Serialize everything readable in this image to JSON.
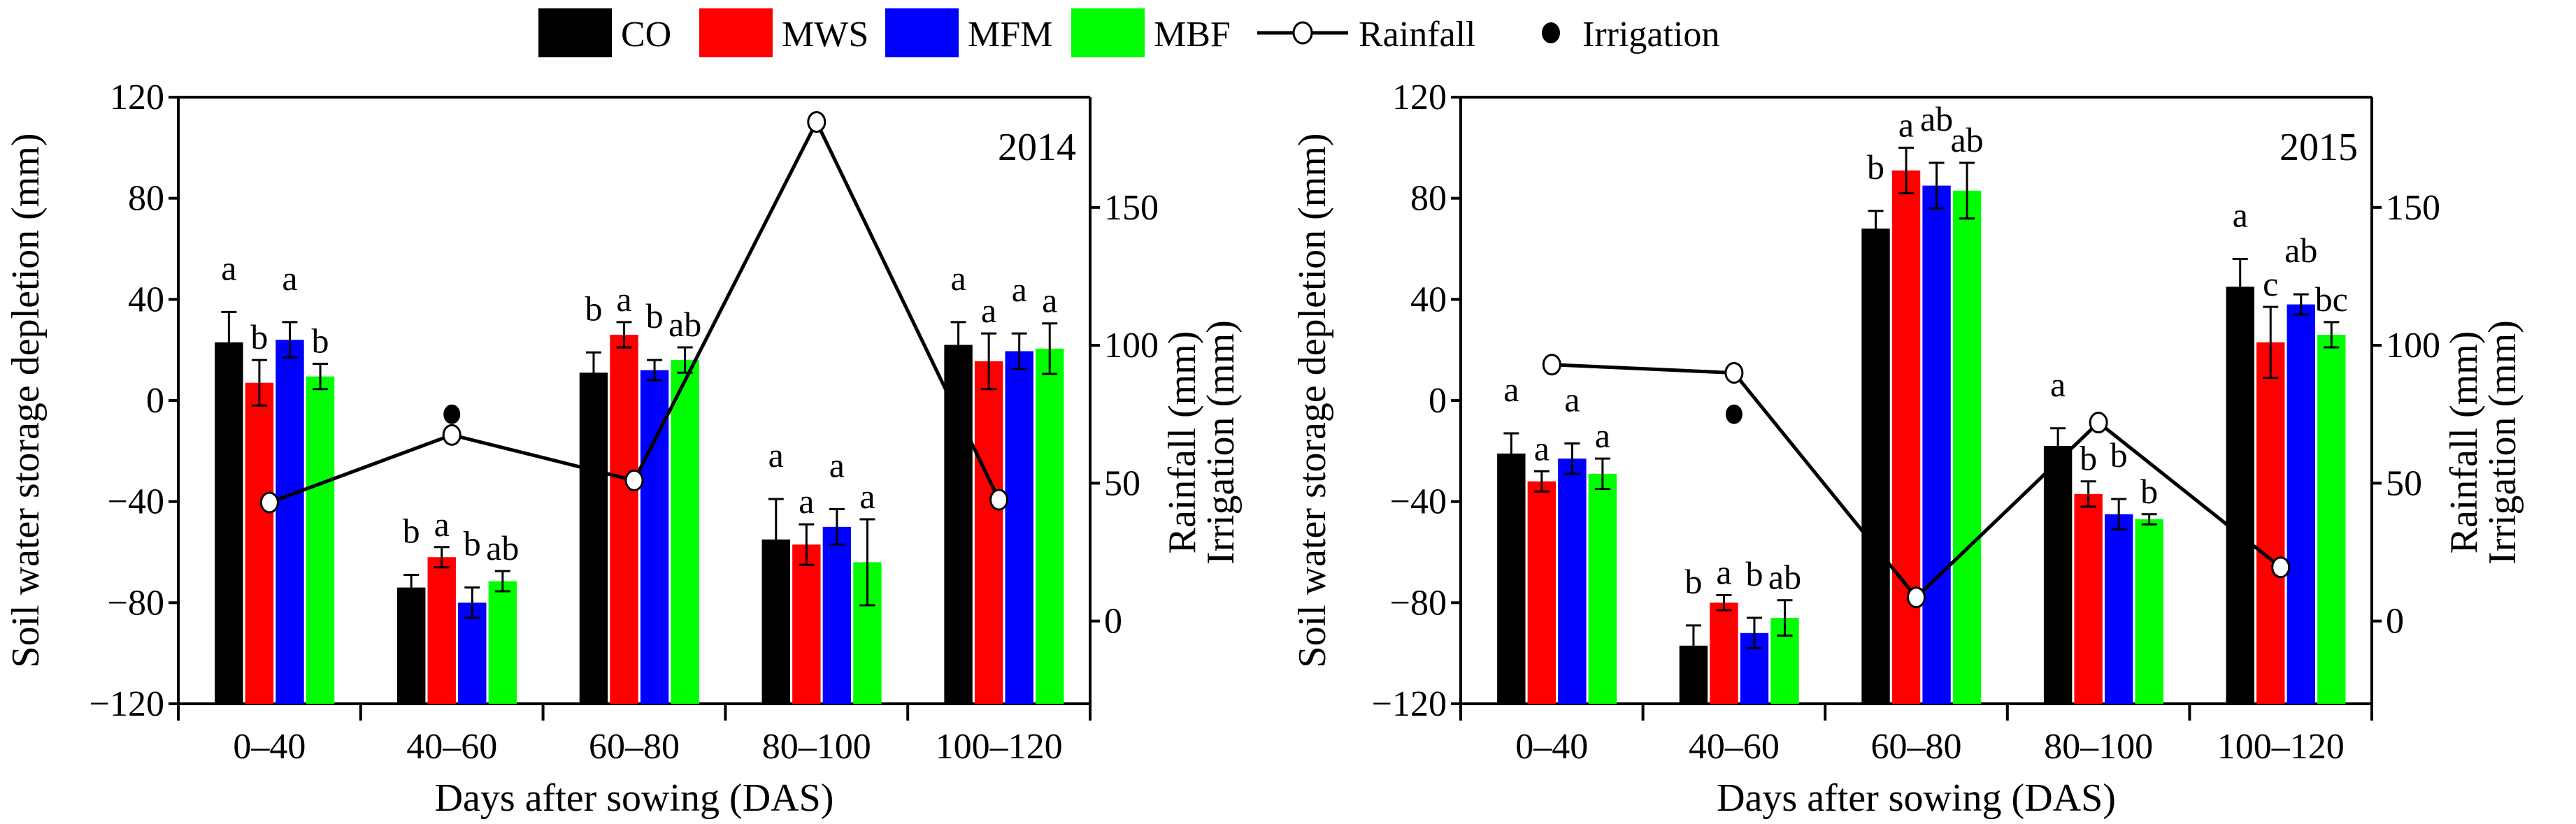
{
  "legend": [
    {
      "name": "CO",
      "color": "#000000",
      "type": "bar"
    },
    {
      "name": "MWS",
      "color": "#ff0000",
      "type": "bar"
    },
    {
      "name": "MFM",
      "color": "#0000ff",
      "type": "bar"
    },
    {
      "name": "MBF",
      "color": "#00ff00",
      "type": "bar"
    },
    {
      "name": "Rainfall",
      "type": "line-open-circle"
    },
    {
      "name": "Irrigation",
      "type": "filled-circle"
    }
  ],
  "chart_data": [
    {
      "type": "bar",
      "title": "2014",
      "xlabel": "Days after sowing (DAS)",
      "ylabel": "Soil water storage depletion (mm)",
      "y2label": [
        "Rainfall (mm)",
        "Irrigation (mm)"
      ],
      "ylim": [
        -120,
        120
      ],
      "yticks": [
        "120",
        "80",
        "40",
        "0",
        "−40",
        "−80",
        "−120"
      ],
      "y2lim": [
        -30,
        190
      ],
      "y2ticks": [
        "0",
        "50",
        "100",
        "150"
      ],
      "categories": [
        "0–40",
        "40–60",
        "60–80",
        "80–100",
        "100–120"
      ],
      "series": [
        {
          "name": "CO",
          "values": [
            23,
            -74,
            11,
            -55,
            22
          ],
          "errors": [
            12,
            5,
            8,
            16,
            9
          ],
          "letters": [
            "a",
            "b",
            "b",
            "a",
            "a"
          ]
        },
        {
          "name": "MWS",
          "values": [
            7,
            -62,
            26,
            -57,
            15.5
          ],
          "errors": [
            9,
            4,
            5,
            8,
            11
          ],
          "letters": [
            "b",
            "a",
            "a",
            "a",
            "a"
          ]
        },
        {
          "name": "MFM",
          "values": [
            24,
            -80,
            12,
            -50,
            19.5
          ],
          "errors": [
            7,
            6,
            4,
            7,
            7
          ],
          "letters": [
            "a",
            "b",
            "b",
            "a",
            "a"
          ]
        },
        {
          "name": "MBF",
          "values": [
            9.5,
            -71.5,
            16,
            -64,
            20.5
          ],
          "errors": [
            5,
            4,
            5,
            17,
            10
          ],
          "letters": [
            "b",
            "ab",
            "ab",
            "a",
            "a"
          ]
        }
      ],
      "rainfall": [
        43,
        67.5,
        51,
        181,
        44
      ],
      "irrigation": [
        null,
        75,
        null,
        null,
        null
      ]
    },
    {
      "type": "bar",
      "title": "2015",
      "xlabel": "Days after sowing (DAS)",
      "ylabel": "Soil water storage depletion (mm)",
      "y2label": [
        "Rainfall (mm)",
        "Irrigation (mm)"
      ],
      "ylim": [
        -120,
        120
      ],
      "yticks": [
        "120",
        "80",
        "40",
        "0",
        "−40",
        "−80",
        "−120"
      ],
      "y2lim": [
        -30,
        190
      ],
      "y2ticks": [
        "0",
        "50",
        "100",
        "150"
      ],
      "categories": [
        "0–40",
        "40–60",
        "60–80",
        "80–100",
        "100–120"
      ],
      "series": [
        {
          "name": "CO",
          "values": [
            -21,
            -97,
            68,
            -18,
            45
          ],
          "errors": [
            8,
            8,
            7,
            7,
            11
          ],
          "letters": [
            "a",
            "b",
            "b",
            "a",
            "a"
          ]
        },
        {
          "name": "MWS",
          "values": [
            -32,
            -80,
            91,
            -37,
            23
          ],
          "errors": [
            4,
            3,
            9,
            5,
            14
          ],
          "letters": [
            "a",
            "a",
            "a",
            "b",
            "c"
          ]
        },
        {
          "name": "MFM",
          "values": [
            -23,
            -92,
            85,
            -45,
            38
          ],
          "errors": [
            6,
            6,
            9,
            6,
            4
          ],
          "letters": [
            "a",
            "b",
            "ab",
            "b",
            "ab"
          ]
        },
        {
          "name": "MBF",
          "values": [
            -29,
            -86,
            83,
            -47,
            26
          ],
          "errors": [
            6,
            7,
            11,
            2,
            5
          ],
          "letters": [
            "a",
            "ab",
            "ab",
            "b",
            "bc"
          ]
        }
      ],
      "rainfall": [
        93,
        90,
        8.6,
        72,
        19.5
      ],
      "irrigation": [
        null,
        75,
        null,
        null,
        null
      ]
    }
  ]
}
